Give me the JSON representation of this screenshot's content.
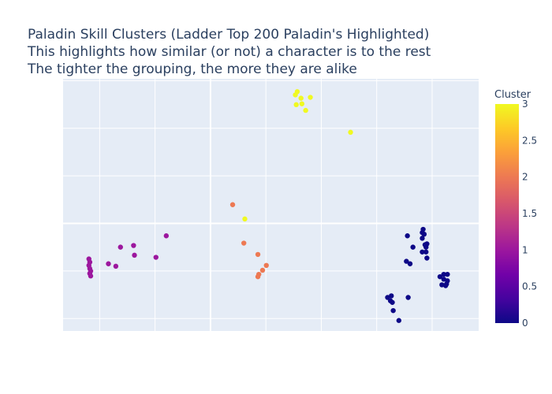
{
  "chart_data": {
    "type": "scatter",
    "title_lines": [
      "Paladin Skill Clusters (Ladder Top 200 Paladin's Highlighted)",
      "This highlights how similar (or not) a character is to the rest",
      "The tighter the grouping, the more they are alike"
    ],
    "xlabel": "",
    "ylabel": "",
    "xlim": [
      -13.3,
      24.2
    ],
    "ylim": [
      -11.3,
      15.2
    ],
    "grid": true,
    "tick_labels_shown": false,
    "colorbar": {
      "title": "Cluster",
      "range": [
        0,
        3
      ],
      "ticks": [
        "0",
        "0.5",
        "1",
        "1.5",
        "2",
        "2.5",
        "3"
      ],
      "colors": [
        "#0d0887",
        "#46039f",
        "#7201a8",
        "#9c179e",
        "#bd3786",
        "#d8576b",
        "#ed7953",
        "#fb9f3a",
        "#fdca26",
        "#f0f921"
      ]
    },
    "points": [
      {
        "x": 15.98,
        "y": -7.78,
        "cluster": 0
      },
      {
        "x": 16.32,
        "y": -7.61,
        "cluster": 0
      },
      {
        "x": 16.24,
        "y": -8.13,
        "cluster": 0
      },
      {
        "x": 16.41,
        "y": -8.3,
        "cluster": 0
      },
      {
        "x": 16.49,
        "y": -9.16,
        "cluster": 0
      },
      {
        "x": 17.0,
        "y": -10.2,
        "cluster": 0
      },
      {
        "x": 17.84,
        "y": -7.78,
        "cluster": 0
      },
      {
        "x": 17.68,
        "y": -3.98,
        "cluster": 0
      },
      {
        "x": 18.01,
        "y": -4.24,
        "cluster": 0
      },
      {
        "x": 17.77,
        "y": -1.3,
        "cluster": 0
      },
      {
        "x": 18.27,
        "y": -2.49,
        "cluster": 0
      },
      {
        "x": 19.11,
        "y": -0.96,
        "cluster": 0
      },
      {
        "x": 19.11,
        "y": -1.56,
        "cluster": 0
      },
      {
        "x": 19.19,
        "y": -0.62,
        "cluster": 0
      },
      {
        "x": 19.28,
        "y": -1.13,
        "cluster": 0
      },
      {
        "x": 19.36,
        "y": -2.24,
        "cluster": 0
      },
      {
        "x": 19.45,
        "y": -3.0,
        "cluster": 0
      },
      {
        "x": 19.53,
        "y": -3.64,
        "cluster": 0
      },
      {
        "x": 19.11,
        "y": -3.0,
        "cluster": 0
      },
      {
        "x": 19.45,
        "y": -2.49,
        "cluster": 0
      },
      {
        "x": 19.53,
        "y": -2.15,
        "cluster": 0
      },
      {
        "x": 20.71,
        "y": -5.6,
        "cluster": 0
      },
      {
        "x": 21.05,
        "y": -5.35,
        "cluster": 0
      },
      {
        "x": 21.38,
        "y": -5.35,
        "cluster": 0
      },
      {
        "x": 21.05,
        "y": -5.86,
        "cluster": 0
      },
      {
        "x": 21.38,
        "y": -6.03,
        "cluster": 0
      },
      {
        "x": 20.88,
        "y": -6.45,
        "cluster": 0
      },
      {
        "x": 21.22,
        "y": -6.54,
        "cluster": 0
      },
      {
        "x": 21.3,
        "y": -6.37,
        "cluster": 0
      },
      {
        "x": -10.97,
        "y": -3.73,
        "cluster": 1
      },
      {
        "x": -10.89,
        "y": -4.07,
        "cluster": 1
      },
      {
        "x": -10.97,
        "y": -4.41,
        "cluster": 1
      },
      {
        "x": -10.89,
        "y": -4.75,
        "cluster": 1
      },
      {
        "x": -10.81,
        "y": -5.01,
        "cluster": 1
      },
      {
        "x": -10.89,
        "y": -5.26,
        "cluster": 1
      },
      {
        "x": -10.81,
        "y": -5.52,
        "cluster": 1
      },
      {
        "x": -9.21,
        "y": -4.24,
        "cluster": 1
      },
      {
        "x": -8.54,
        "y": -4.5,
        "cluster": 1
      },
      {
        "x": -8.12,
        "y": -2.49,
        "cluster": 1
      },
      {
        "x": -6.94,
        "y": -2.32,
        "cluster": 1
      },
      {
        "x": -6.86,
        "y": -3.34,
        "cluster": 1
      },
      {
        "x": -4.92,
        "y": -3.56,
        "cluster": 1
      },
      {
        "x": -3.99,
        "y": -1.3,
        "cluster": 1
      },
      {
        "x": 2.0,
        "y": 1.97,
        "cluster": 2
      },
      {
        "x": 3.01,
        "y": -2.07,
        "cluster": 2
      },
      {
        "x": 4.28,
        "y": -3.26,
        "cluster": 2
      },
      {
        "x": 5.04,
        "y": -4.41,
        "cluster": 2
      },
      {
        "x": 4.7,
        "y": -4.92,
        "cluster": 2
      },
      {
        "x": 4.36,
        "y": -5.35,
        "cluster": 2
      },
      {
        "x": 4.28,
        "y": -5.6,
        "cluster": 2
      },
      {
        "x": 3.1,
        "y": 0.47,
        "cluster": 3
      },
      {
        "x": 7.66,
        "y": 13.51,
        "cluster": 3
      },
      {
        "x": 7.83,
        "y": 13.85,
        "cluster": 3
      },
      {
        "x": 8.17,
        "y": 13.16,
        "cluster": 3
      },
      {
        "x": 7.74,
        "y": 12.48,
        "cluster": 3
      },
      {
        "x": 8.25,
        "y": 12.57,
        "cluster": 3
      },
      {
        "x": 9.01,
        "y": 13.25,
        "cluster": 3
      },
      {
        "x": 8.59,
        "y": 11.88,
        "cluster": 3
      },
      {
        "x": 12.64,
        "y": 9.58,
        "cluster": 3
      }
    ]
  }
}
